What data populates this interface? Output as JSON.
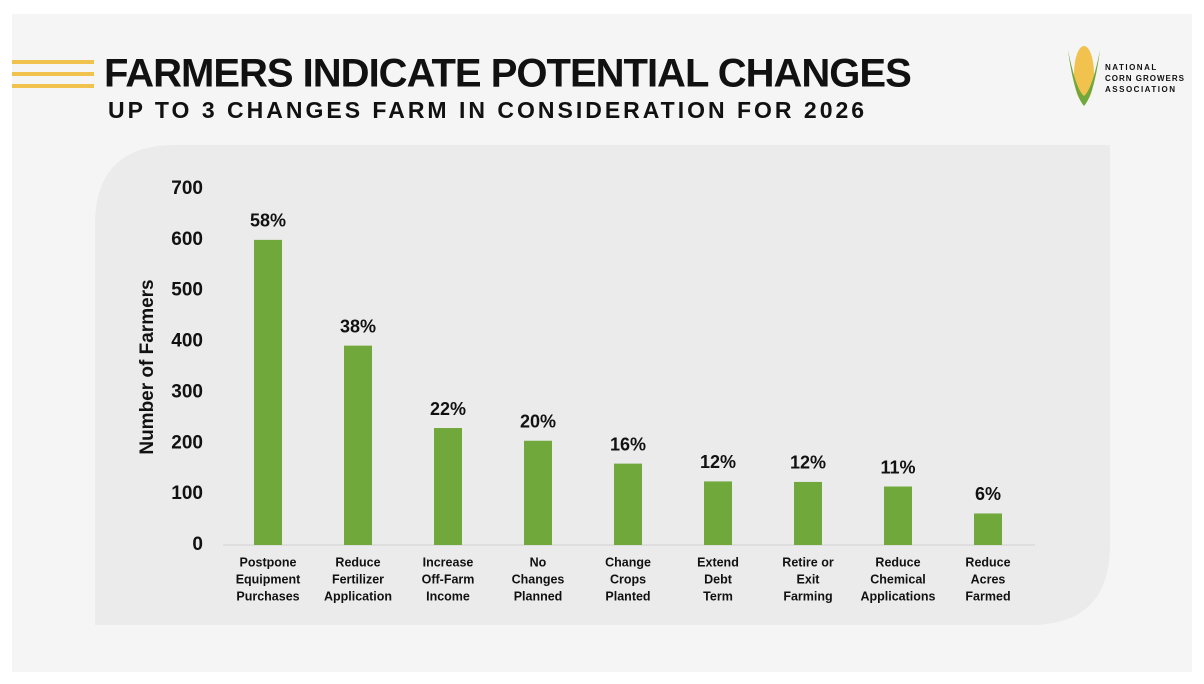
{
  "chart_data": {
    "type": "bar",
    "title": "FARMERS INDICATE POTENTIAL CHANGES",
    "subtitle": "UP TO 3 CHANGES FARM IN CONSIDERATION FOR 2026",
    "y_label": "Number of Farmers",
    "categories": [
      [
        "Postpone",
        "Equipment",
        "Purchases"
      ],
      [
        "Reduce",
        "Fertilizer",
        "Application"
      ],
      [
        "Increase",
        "Off-Farm",
        "Income"
      ],
      [
        "No",
        "Changes",
        "Planned"
      ],
      [
        "Change",
        "Crops",
        "Planted"
      ],
      [
        "Extend",
        "Debt",
        "Term"
      ],
      [
        "Retire or",
        "Exit",
        "Farming"
      ],
      [
        "Reduce",
        "Chemical",
        "Applications"
      ],
      [
        "Reduce",
        "Acres",
        "Farmed"
      ]
    ],
    "values": [
      600,
      392,
      230,
      205,
      160,
      125,
      124,
      115,
      62
    ],
    "bar_labels": [
      "58%",
      "38%",
      "22%",
      "20%",
      "16%",
      "12%",
      "12%",
      "11%",
      "6%"
    ],
    "color": "#70a83b",
    "ylim": [
      0,
      700
    ],
    "yticks": [
      0,
      100,
      200,
      300,
      400,
      500,
      600,
      700
    ],
    "grid": false,
    "logo": [
      "NATIONAL",
      "CORN GROWERS",
      "ASSOCIATION"
    ]
  }
}
